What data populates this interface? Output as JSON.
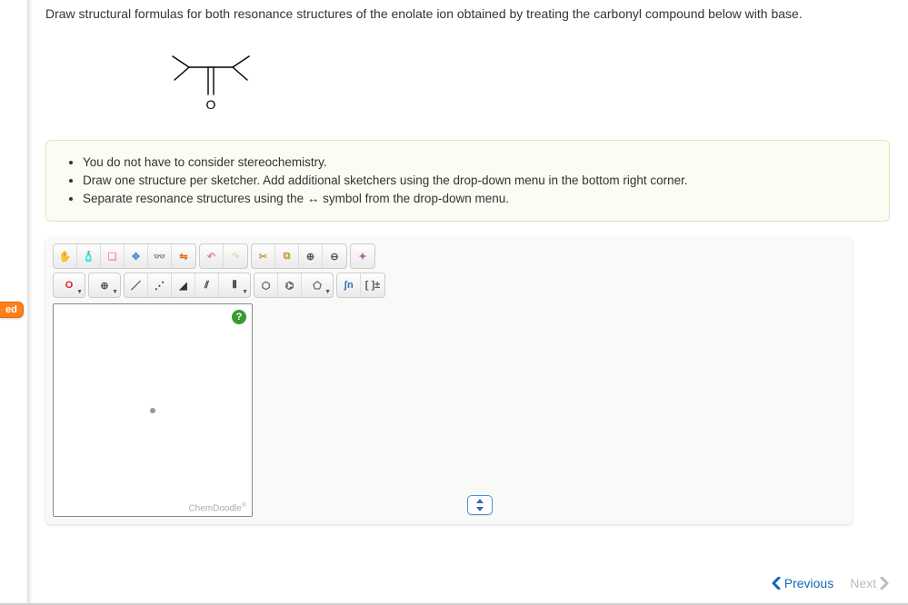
{
  "question": {
    "text": "Draw structural formulas for both resonance structures of the enolate ion obtained by treating the carbonyl compound below with base."
  },
  "molecule": {
    "oxygen_label": "O",
    "stroke": "#000000",
    "stroke_width": 1.4,
    "width": 110,
    "height": 85
  },
  "instructions": {
    "background": "#fafdf3",
    "border": "#dbe8c2",
    "items": [
      "You do not have to consider stereochemistry.",
      "Draw one structure per sketcher. Add additional sketchers using the drop-down menu in the bottom right corner.",
      "Separate resonance structures using the ↔ symbol from the drop-down menu."
    ]
  },
  "side_tab": {
    "label": "ed",
    "bg": "#ff7f1b"
  },
  "toolbar": {
    "row1_groups": [
      {
        "buttons": [
          {
            "name": "hand-icon",
            "glyph": "✋",
            "color": "#d9a25a"
          },
          {
            "name": "spray-icon",
            "glyph": "🧴",
            "color": "#6aa8e6"
          },
          {
            "name": "eraser-icon",
            "glyph": "❏",
            "color": "#f28bb9"
          },
          {
            "name": "center-icon",
            "glyph": "✥",
            "color": "#4a90d9"
          },
          {
            "name": "glasses-icon",
            "glyph": "👓",
            "color": "#555"
          },
          {
            "name": "flip-icon",
            "glyph": "⇋",
            "color": "#e06a0f"
          }
        ]
      },
      {
        "buttons": [
          {
            "name": "undo-icon",
            "glyph": "↶",
            "color": "#d77ea4"
          },
          {
            "name": "redo-icon",
            "glyph": "↷",
            "color": "#cdeab2"
          }
        ]
      },
      {
        "buttons": [
          {
            "name": "cut-icon",
            "glyph": "✂",
            "color": "#c79b3a"
          },
          {
            "name": "copy-icon",
            "glyph": "⧉",
            "color": "#c79b3a"
          },
          {
            "name": "zoom-in-icon",
            "glyph": "⊕",
            "color": "#555"
          },
          {
            "name": "zoom-out-icon",
            "glyph": "⊖",
            "color": "#555"
          }
        ]
      },
      {
        "buttons": [
          {
            "name": "clean-icon",
            "glyph": "✦",
            "color": "#b05fa3"
          }
        ]
      }
    ],
    "row2_groups": [
      {
        "buttons": [
          {
            "name": "element-o",
            "glyph": "O",
            "color": "#d22",
            "dd": true
          }
        ]
      },
      {
        "buttons": [
          {
            "name": "charge-plus-icon",
            "glyph": "⊕",
            "color": "#555",
            "dd": true
          }
        ]
      },
      {
        "buttons": [
          {
            "name": "single-bond-icon",
            "glyph": "／",
            "color": "#333"
          },
          {
            "name": "dotted-bond-icon",
            "glyph": "⋰",
            "color": "#333"
          },
          {
            "name": "wedge-bond-icon",
            "glyph": "◢",
            "color": "#333"
          },
          {
            "name": "double-bond-icon",
            "glyph": "⫽",
            "color": "#333"
          },
          {
            "name": "triple-bond-icon",
            "glyph": "⫴",
            "color": "#333",
            "dd": true
          }
        ]
      },
      {
        "buttons": [
          {
            "name": "hexagon-icon",
            "glyph": "⬡",
            "color": "#555"
          },
          {
            "name": "benzene-icon",
            "glyph": "⌬",
            "color": "#555"
          },
          {
            "name": "pentagon-icon",
            "glyph": "⬠",
            "color": "#555",
            "dd": true
          }
        ]
      },
      {
        "buttons": [
          {
            "name": "chain-icon",
            "glyph": "ʃn",
            "color": "#2b6fb3"
          },
          {
            "name": "bracket-icon",
            "glyph": "[ ]±",
            "color": "#555"
          }
        ]
      }
    ]
  },
  "sketcher": {
    "help_label": "?",
    "brand": "ChemDoodle",
    "brand_suffix": "®",
    "canvas_bg": "#ffffff",
    "canvas_border": "#888888",
    "help_bg": "#3a9b2f"
  },
  "nav": {
    "previous": "Previous",
    "next": "Next",
    "prev_color": "#1066b8",
    "next_color": "#bcbcbc"
  }
}
